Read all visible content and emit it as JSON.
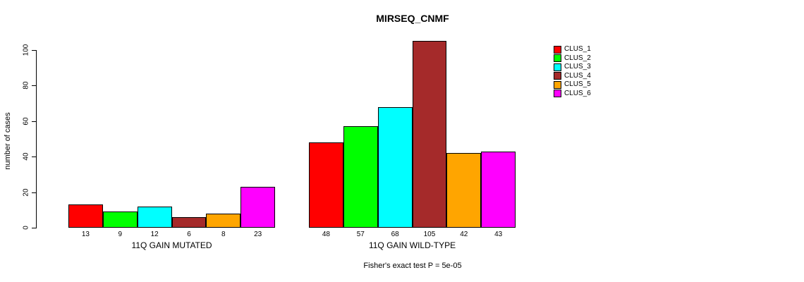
{
  "chart_data": {
    "type": "bar",
    "title": "MIRSEQ_CNMF",
    "ylabel": "number of cases",
    "xlabel": "",
    "ylim": [
      0,
      100
    ],
    "yticks": [
      0,
      20,
      40,
      60,
      80,
      100
    ],
    "grid": false,
    "legend_position": "right",
    "series_labels": [
      "CLUS_1",
      "CLUS_2",
      "CLUS_3",
      "CLUS_4",
      "CLUS_5",
      "CLUS_6"
    ],
    "colors": [
      "#FF0000",
      "#00FF00",
      "#00FFFF",
      "#A52A2A",
      "#FFA500",
      "#FF00FF"
    ],
    "groups": [
      {
        "label": "11Q GAIN MUTATED",
        "values": [
          13,
          9,
          12,
          6,
          8,
          23
        ]
      },
      {
        "label": "11Q GAIN WILD-TYPE",
        "values": [
          48,
          57,
          68,
          105,
          42,
          43
        ]
      }
    ],
    "annotation": "Fisher's exact test P = 5e-05"
  }
}
